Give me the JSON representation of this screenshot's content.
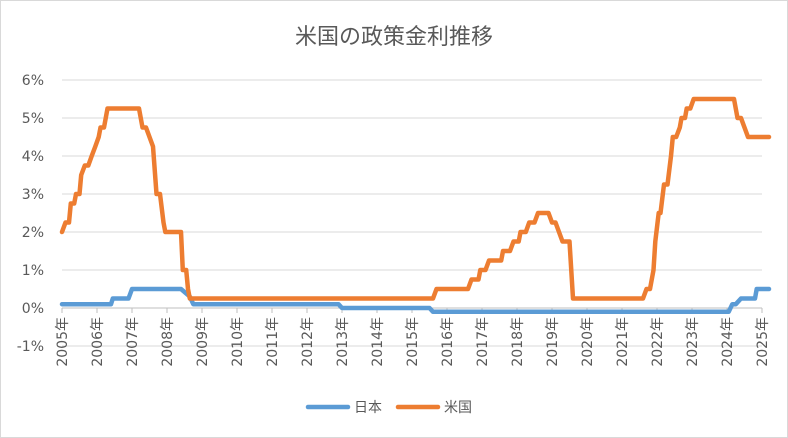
{
  "chart_data": {
    "type": "line",
    "title": "米国の政策金利推移",
    "xlabel": "",
    "ylabel": "",
    "ylim": [
      -1,
      6
    ],
    "xlim": [
      2005,
      2025
    ],
    "yticks": [
      "6%",
      "5%",
      "4%",
      "3%",
      "2%",
      "1%",
      "0%",
      "-1%"
    ],
    "ytick_values": [
      6,
      5,
      4,
      3,
      2,
      1,
      0,
      -1
    ],
    "xticks": [
      "2005年",
      "2006年",
      "2007年",
      "2008年",
      "2009年",
      "2010年",
      "2011年",
      "2012年",
      "2013年",
      "2014年",
      "2015年",
      "2016年",
      "2017年",
      "2018年",
      "2019年",
      "2020年",
      "2021年",
      "2022年",
      "2023年",
      "2024年",
      "2025年"
    ],
    "xtick_values": [
      2005,
      2006,
      2007,
      2008,
      2009,
      2010,
      2011,
      2012,
      2013,
      2014,
      2015,
      2016,
      2017,
      2018,
      2019,
      2020,
      2021,
      2022,
      2023,
      2024,
      2025
    ],
    "grid": true,
    "legend_position": "bottom",
    "series": [
      {
        "name": "日本",
        "color": "#5B9BD5",
        "points": [
          [
            2005.0,
            0.1
          ],
          [
            2006.4,
            0.1
          ],
          [
            2006.45,
            0.25
          ],
          [
            2006.9,
            0.25
          ],
          [
            2007.0,
            0.5
          ],
          [
            2008.4,
            0.5
          ],
          [
            2008.65,
            0.3
          ],
          [
            2008.75,
            0.1
          ],
          [
            2012.9,
            0.1
          ],
          [
            2013.0,
            0.0
          ],
          [
            2015.5,
            0.0
          ],
          [
            2015.6,
            -0.1
          ],
          [
            2024.05,
            -0.1
          ],
          [
            2024.15,
            0.1
          ],
          [
            2024.25,
            0.1
          ],
          [
            2024.4,
            0.25
          ],
          [
            2024.8,
            0.25
          ],
          [
            2024.85,
            0.5
          ],
          [
            2025.2,
            0.5
          ]
        ]
      },
      {
        "name": "米国",
        "color": "#ED7D31",
        "points": [
          [
            2005.0,
            2.0
          ],
          [
            2005.1,
            2.25
          ],
          [
            2005.2,
            2.25
          ],
          [
            2005.25,
            2.75
          ],
          [
            2005.35,
            2.75
          ],
          [
            2005.4,
            3.0
          ],
          [
            2005.5,
            3.0
          ],
          [
            2005.55,
            3.5
          ],
          [
            2005.65,
            3.75
          ],
          [
            2005.75,
            3.75
          ],
          [
            2005.85,
            4.0
          ],
          [
            2005.95,
            4.25
          ],
          [
            2006.05,
            4.5
          ],
          [
            2006.1,
            4.75
          ],
          [
            2006.2,
            4.75
          ],
          [
            2006.3,
            5.25
          ],
          [
            2007.2,
            5.25
          ],
          [
            2007.3,
            4.75
          ],
          [
            2007.4,
            4.75
          ],
          [
            2007.5,
            4.5
          ],
          [
            2007.6,
            4.25
          ],
          [
            2007.7,
            3.0
          ],
          [
            2007.8,
            3.0
          ],
          [
            2007.9,
            2.25
          ],
          [
            2007.95,
            2.0
          ],
          [
            2008.4,
            2.0
          ],
          [
            2008.45,
            1.0
          ],
          [
            2008.55,
            1.0
          ],
          [
            2008.6,
            0.5
          ],
          [
            2008.65,
            0.25
          ],
          [
            2015.6,
            0.25
          ],
          [
            2015.7,
            0.5
          ],
          [
            2016.6,
            0.5
          ],
          [
            2016.7,
            0.75
          ],
          [
            2016.9,
            0.75
          ],
          [
            2016.95,
            1.0
          ],
          [
            2017.1,
            1.0
          ],
          [
            2017.2,
            1.25
          ],
          [
            2017.55,
            1.25
          ],
          [
            2017.6,
            1.5
          ],
          [
            2017.8,
            1.5
          ],
          [
            2017.9,
            1.75
          ],
          [
            2018.05,
            1.75
          ],
          [
            2018.1,
            2.0
          ],
          [
            2018.25,
            2.0
          ],
          [
            2018.35,
            2.25
          ],
          [
            2018.5,
            2.25
          ],
          [
            2018.6,
            2.5
          ],
          [
            2018.9,
            2.5
          ],
          [
            2019.0,
            2.25
          ],
          [
            2019.1,
            2.25
          ],
          [
            2019.2,
            2.0
          ],
          [
            2019.3,
            1.75
          ],
          [
            2019.5,
            1.75
          ],
          [
            2019.6,
            0.25
          ],
          [
            2021.6,
            0.25
          ],
          [
            2021.7,
            0.5
          ],
          [
            2021.8,
            0.5
          ],
          [
            2021.9,
            1.0
          ],
          [
            2021.95,
            1.75
          ],
          [
            2022.05,
            2.5
          ],
          [
            2022.1,
            2.5
          ],
          [
            2022.2,
            3.25
          ],
          [
            2022.3,
            3.25
          ],
          [
            2022.4,
            4.0
          ],
          [
            2022.45,
            4.5
          ],
          [
            2022.55,
            4.5
          ],
          [
            2022.65,
            4.75
          ],
          [
            2022.7,
            5.0
          ],
          [
            2022.8,
            5.0
          ],
          [
            2022.85,
            5.25
          ],
          [
            2022.95,
            5.25
          ],
          [
            2023.05,
            5.5
          ],
          [
            2024.2,
            5.5
          ],
          [
            2024.3,
            5.0
          ],
          [
            2024.4,
            5.0
          ],
          [
            2024.5,
            4.75
          ],
          [
            2024.6,
            4.5
          ],
          [
            2025.2,
            4.5
          ]
        ]
      }
    ]
  }
}
